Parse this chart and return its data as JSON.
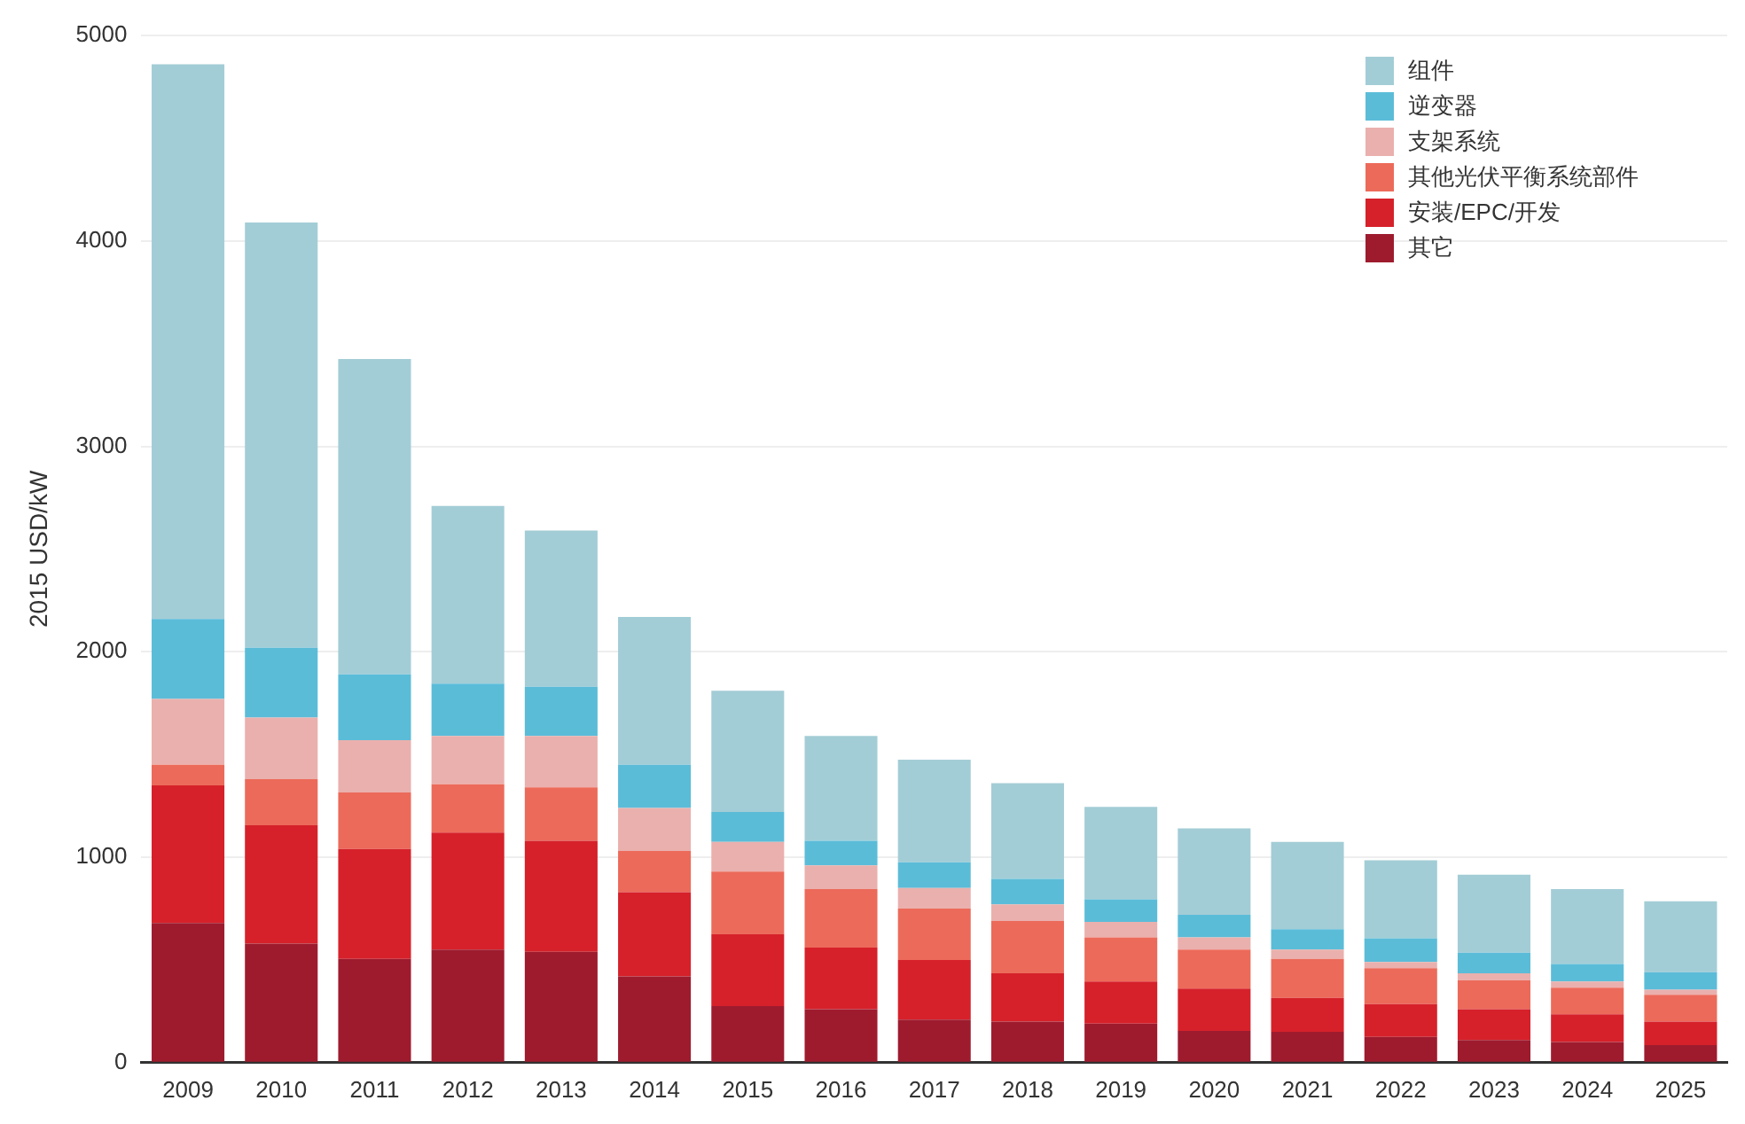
{
  "chart_data": {
    "type": "bar",
    "stacked": true,
    "ylabel": "2015 USD/kW",
    "categories": [
      "2009",
      "2010",
      "2011",
      "2012",
      "2013",
      "2014",
      "2015",
      "2016",
      "2017",
      "2018",
      "2019",
      "2020",
      "2021",
      "2022",
      "2023",
      "2024",
      "2025"
    ],
    "series": [
      {
        "name": "其它",
        "color": "#9e1b2e",
        "values": [
          680,
          580,
          505,
          550,
          540,
          420,
          275,
          260,
          210,
          200,
          190,
          155,
          150,
          125,
          110,
          100,
          85
        ]
      },
      {
        "name": "安装/EPC/开发",
        "color": "#d6212a",
        "values": [
          670,
          575,
          535,
          570,
          540,
          410,
          350,
          300,
          290,
          235,
          205,
          205,
          165,
          160,
          150,
          135,
          115
        ]
      },
      {
        "name": "其他光伏平衡系统部件",
        "color": "#ec6a5a",
        "values": [
          100,
          225,
          275,
          235,
          260,
          200,
          305,
          285,
          250,
          255,
          215,
          190,
          190,
          175,
          140,
          130,
          130
        ]
      },
      {
        "name": "支架系统",
        "color": "#eab0ad",
        "values": [
          320,
          300,
          255,
          235,
          250,
          210,
          145,
          115,
          100,
          80,
          75,
          60,
          45,
          30,
          35,
          30,
          25
        ]
      },
      {
        "name": "逆变器",
        "color": "#5bbcd8",
        "values": [
          390,
          340,
          320,
          255,
          240,
          210,
          145,
          120,
          125,
          125,
          110,
          110,
          100,
          115,
          100,
          85,
          85
        ]
      },
      {
        "name": "组件",
        "color": "#a3cdd6",
        "values": [
          2700,
          2070,
          1535,
          865,
          760,
          720,
          590,
          510,
          500,
          465,
          450,
          420,
          425,
          380,
          380,
          365,
          345
        ]
      }
    ],
    "ylim": [
      0,
      5000
    ],
    "yticks": [
      0,
      1000,
      2000,
      3000,
      4000,
      5000
    ],
    "grid": "y",
    "legend": "top right"
  }
}
